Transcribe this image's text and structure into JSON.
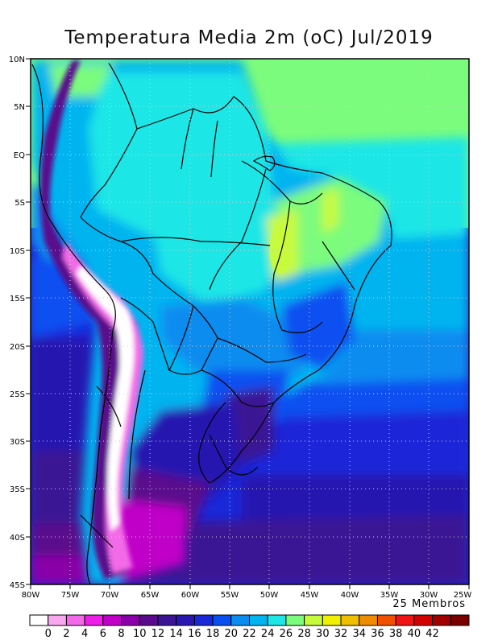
{
  "title": "Temperatura Media 2m (oC) Jul/2019",
  "members_label": "25 Membros",
  "map": {
    "lon_range": [
      -80,
      -25
    ],
    "lat_range": [
      -45,
      10
    ],
    "lat_ticks": [
      "10N",
      "5N",
      "EQ",
      "5S",
      "10S",
      "15S",
      "20S",
      "25S",
      "30S",
      "35S",
      "40S",
      "45S"
    ],
    "lon_ticks": [
      "80W",
      "75W",
      "70W",
      "65W",
      "60W",
      "55W",
      "50W",
      "45W",
      "40W",
      "35W",
      "30W",
      "25W"
    ],
    "grid": "dotted"
  },
  "colorbar": {
    "labels": [
      "0",
      "2",
      "4",
      "6",
      "8",
      "10",
      "12",
      "14",
      "16",
      "18",
      "20",
      "22",
      "24",
      "26",
      "28",
      "30",
      "32",
      "34",
      "36",
      "38",
      "40",
      "42"
    ],
    "colors": [
      "#ffffff",
      "#f9a8f0",
      "#f26ae8",
      "#ee1ee6",
      "#c000c8",
      "#8a00a8",
      "#5a0a8c",
      "#3a1494",
      "#2818b0",
      "#1a28d8",
      "#0a50f0",
      "#0a8cf0",
      "#00b4f0",
      "#1ee6e6",
      "#7cfc7c",
      "#c8fa3c",
      "#f0f000",
      "#f0c000",
      "#f08c00",
      "#f05000",
      "#f01414",
      "#d20000",
      "#a00000",
      "#7a0000"
    ]
  }
}
